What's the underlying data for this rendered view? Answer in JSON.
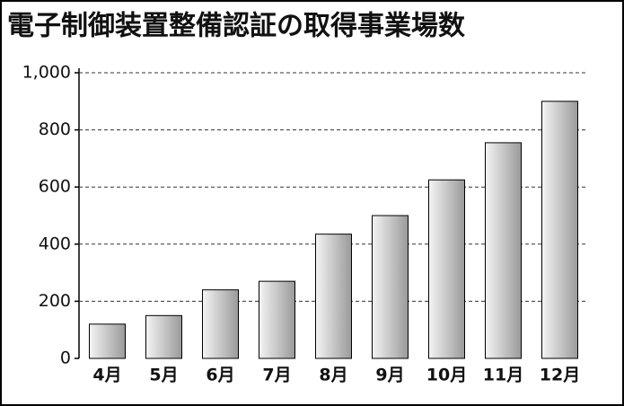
{
  "chart_data": {
    "type": "bar",
    "title": "電子制御装置整備認証の取得事業場数",
    "categories": [
      "4月",
      "5月",
      "6月",
      "7月",
      "8月",
      "9月",
      "10月",
      "11月",
      "12月"
    ],
    "values": [
      120,
      150,
      240,
      270,
      435,
      500,
      625,
      755,
      900
    ],
    "color": "#9a9a9a",
    "ylim": [
      0,
      1000
    ],
    "yticks": [
      0,
      200,
      400,
      600,
      800,
      {
        "value": 1000,
        "label": "1,000"
      }
    ],
    "grid": true
  }
}
